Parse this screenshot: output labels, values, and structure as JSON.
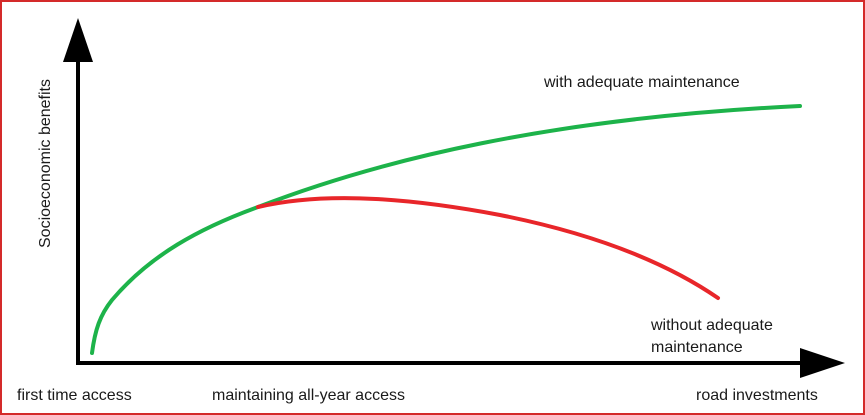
{
  "diagram": {
    "y_axis_label": "Socioeconomic benefits",
    "x_axis_label": "road investments",
    "x_stage_labels": {
      "start": "first time access",
      "middle": "maintaining all-year access"
    },
    "curves": [
      {
        "id": "with-maintenance",
        "label": "with adequate maintenance",
        "color": "#1db34a"
      },
      {
        "id": "without-maintenance",
        "label_lines": [
          "without adequate",
          "maintenance"
        ],
        "color": "#e8262a"
      }
    ],
    "colors": {
      "frame": "#d42a2a",
      "axes": "#000000",
      "text": "#1a1a1a"
    }
  }
}
